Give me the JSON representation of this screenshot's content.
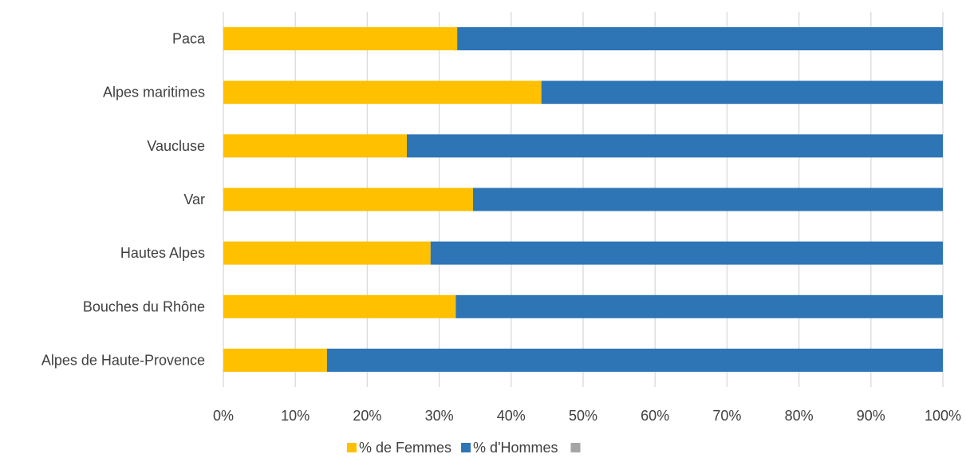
{
  "chart_data": {
    "type": "bar",
    "orientation": "horizontal",
    "stacked": "percent",
    "categories": [
      "Paca",
      "Alpes maritimes",
      "Vaucluse",
      "Var",
      "Hautes Alpes",
      "Bouches du Rhône",
      "Alpes de Haute-Provence"
    ],
    "series": [
      {
        "name": "% de Femmes",
        "color": "#FFC000",
        "values": [
          32.5,
          44.2,
          25.5,
          34.7,
          28.8,
          32.3,
          14.4
        ]
      },
      {
        "name": "% d'Hommes",
        "color": "#2E75B6",
        "values": [
          67.5,
          55.8,
          74.5,
          65.3,
          71.2,
          67.7,
          85.6
        ]
      }
    ],
    "legend_extra_swatch_color": "#A5A5A5",
    "x_ticks": [
      "0%",
      "10%",
      "20%",
      "30%",
      "40%",
      "50%",
      "60%",
      "70%",
      "80%",
      "90%",
      "100%"
    ],
    "xlim": [
      0,
      100
    ],
    "grid": "vertical",
    "legend_position": "bottom",
    "title": "",
    "xlabel": "",
    "ylabel": ""
  }
}
